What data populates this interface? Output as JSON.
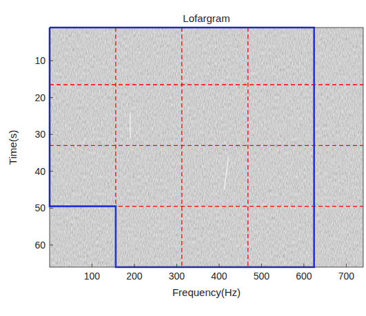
{
  "chart_data": {
    "type": "spectrogram",
    "title": "Lofargram",
    "x_label": "Frequency(Hz)",
    "y_label": "Time(s)",
    "xlim": [
      0,
      740
    ],
    "ylim": [
      66,
      1
    ],
    "xticks": [
      100,
      200,
      300,
      400,
      500,
      600,
      700
    ],
    "yticks": [
      10,
      20,
      30,
      40,
      50,
      60
    ],
    "grid": false,
    "series": [
      {
        "type": "line",
        "color": "#ff0000",
        "line_style": "dashed",
        "x": [
          156,
          156
        ],
        "values": [
          1,
          66
        ]
      },
      {
        "type": "line",
        "color": "#ff0000",
        "line_style": "dashed",
        "x": [
          312,
          312
        ],
        "values": [
          1,
          66
        ]
      },
      {
        "type": "line",
        "color": "#ff0000",
        "line_style": "dashed",
        "x": [
          468,
          468
        ],
        "values": [
          1,
          66
        ]
      },
      {
        "type": "line",
        "color": "#ff0000",
        "line_style": "dashed",
        "x": [
          0,
          740
        ],
        "values": [
          16.5,
          16.5
        ]
      },
      {
        "type": "line",
        "color": "#ff0000",
        "line_style": "dashed",
        "x": [
          0,
          740
        ],
        "values": [
          33,
          33
        ]
      },
      {
        "type": "line",
        "color": "#ff0000",
        "line_style": "dashed",
        "x": [
          0,
          740
        ],
        "values": [
          49.5,
          49.5
        ]
      },
      {
        "type": "line",
        "color": "#ffffff",
        "line_style": "solid",
        "x": [
          190,
          191
        ],
        "values": [
          24,
          31
        ]
      },
      {
        "type": "line",
        "color": "#ffffff",
        "line_style": "solid",
        "x": [
          412,
          422
        ],
        "values": [
          45,
          36
        ]
      },
      {
        "type": "line",
        "color": "#2633d6",
        "line_style": "solid",
        "x": [
          0,
          624,
          624,
          156,
          156,
          0,
          0
        ],
        "values": [
          1,
          1,
          66,
          66,
          49.5,
          49.5,
          1
        ]
      }
    ]
  }
}
